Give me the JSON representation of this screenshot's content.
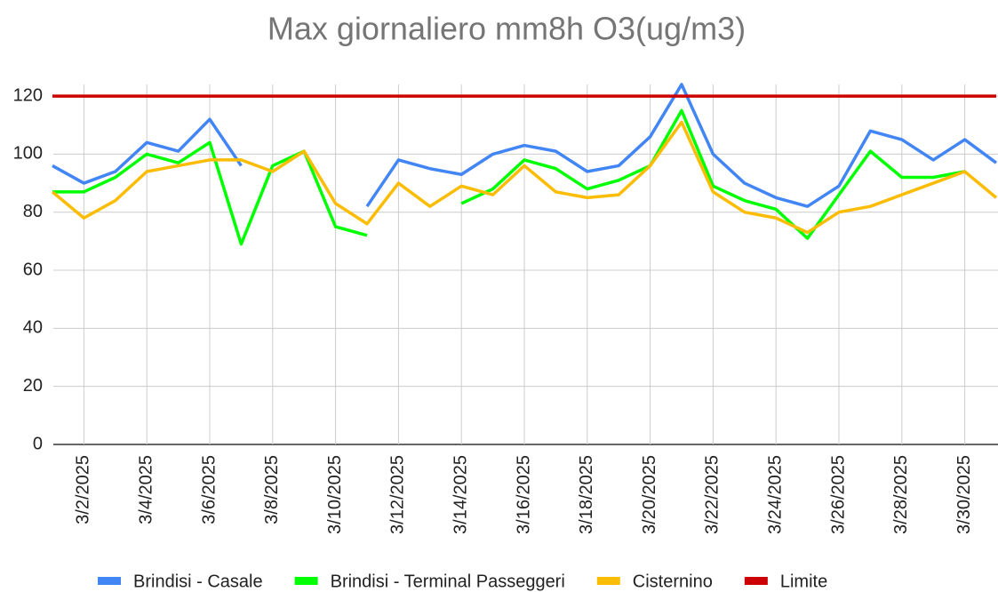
{
  "chart_data": {
    "type": "line",
    "title": "Max giornaliero mm8h O3(ug/m3)",
    "categories": [
      null,
      "3/2/2025",
      null,
      "3/4/2025",
      null,
      "3/6/2025",
      null,
      "3/8/2025",
      null,
      "3/10/2025",
      null,
      "3/12/2025",
      null,
      "3/14/2025",
      null,
      "3/16/2025",
      null,
      "3/18/2025",
      null,
      "3/20/2025",
      null,
      "3/22/2025",
      null,
      "3/24/2025",
      null,
      "3/26/2025",
      null,
      "3/28/2025",
      null,
      "3/30/2025",
      null
    ],
    "series": [
      {
        "name": "Brindisi - Casale",
        "color": "#4285f4",
        "values": [
          96,
          90,
          94,
          104,
          101,
          112,
          96,
          null,
          null,
          null,
          82,
          98,
          95,
          93,
          100,
          103,
          101,
          94,
          96,
          106,
          124,
          100,
          90,
          85,
          82,
          89,
          108,
          105,
          98,
          105,
          97
        ]
      },
      {
        "name": "Brindisi - Terminal Passeggeri",
        "color": "#00ff00",
        "values": [
          87,
          87,
          92,
          100,
          97,
          104,
          69,
          96,
          101,
          75,
          72,
          null,
          null,
          83,
          88,
          98,
          95,
          88,
          91,
          96,
          115,
          89,
          84,
          81,
          71,
          86,
          101,
          92,
          92,
          94,
          null
        ]
      },
      {
        "name": "Cisternino",
        "color": "#fbbc04",
        "values": [
          87,
          78,
          84,
          94,
          96,
          98,
          98,
          94,
          101,
          83,
          76,
          90,
          82,
          89,
          86,
          96,
          87,
          85,
          86,
          96,
          111,
          87,
          80,
          78,
          73,
          80,
          82,
          86,
          90,
          94,
          85
        ]
      },
      {
        "name": "Limite",
        "color": "#cc0000",
        "values": [
          120,
          120,
          120,
          120,
          120,
          120,
          120,
          120,
          120,
          120,
          120,
          120,
          120,
          120,
          120,
          120,
          120,
          120,
          120,
          120,
          120,
          120,
          120,
          120,
          120,
          120,
          120,
          120,
          120,
          120,
          120
        ]
      }
    ],
    "ylim": [
      0,
      124
    ],
    "yticks": [
      0,
      20,
      40,
      60,
      80,
      100,
      120
    ],
    "grid": true
  }
}
